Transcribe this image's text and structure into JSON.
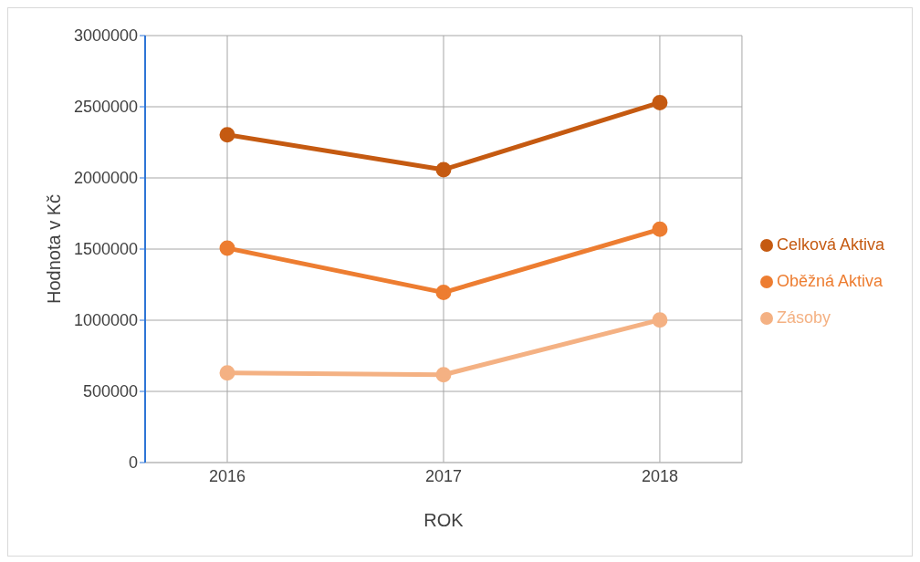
{
  "chart_data": {
    "type": "line",
    "xlabel": "ROK",
    "ylabel": "Hodnota v Kč",
    "categories": [
      "2016",
      "2017",
      "2018"
    ],
    "series": [
      {
        "name": "Zásoby",
        "color": "#f4b183",
        "values": [
          630000,
          617000,
          1002000
        ]
      },
      {
        "name": "Oběžná Aktiva",
        "color": "#ed7d31",
        "values": [
          1507000,
          1195000,
          1639000
        ]
      },
      {
        "name": "Celková Aktiva",
        "color": "#c55a11",
        "values": [
          2303000,
          2058000,
          2529000
        ]
      }
    ],
    "ylim": [
      0,
      3000000
    ],
    "yticks": [
      0,
      500000,
      1000000,
      1500000,
      2000000,
      2500000,
      3000000
    ],
    "grid": true,
    "legend": "right",
    "marker": "circle",
    "line_style": "solid"
  }
}
